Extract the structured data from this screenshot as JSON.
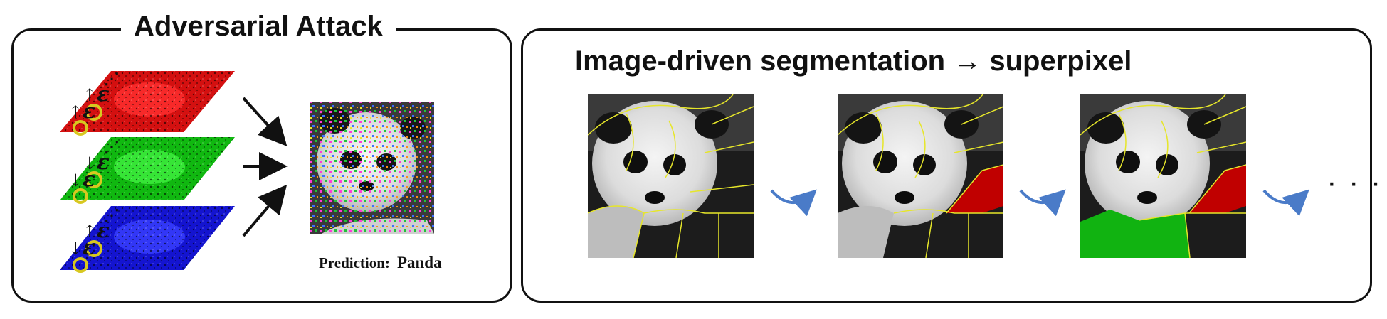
{
  "left_panel": {
    "title": "Adversarial Attack",
    "prediction_label": "Prediction:",
    "prediction_value": "Panda",
    "channels": [
      {
        "name": "red",
        "color": "#e01010",
        "eps_a": "↑",
        "eps_b": "↑"
      },
      {
        "name": "green",
        "color": "#10c810",
        "eps_a": "↓",
        "eps_b": "↓"
      },
      {
        "name": "blue",
        "color": "#1018e0",
        "eps_a": "↓",
        "eps_b": "↑"
      }
    ],
    "epsilon_symbol": "ε"
  },
  "right_panel": {
    "title_prefix": "Image-driven segmentation → ",
    "title_bold": "superpixel",
    "ellipsis": "· · ·"
  },
  "colors": {
    "outline": "#111111",
    "superpixel_boundary": "#e6e62a",
    "highlight_red": "#c00000",
    "highlight_green": "#11b311",
    "curved_arrow": "#4a7bc8",
    "marker_ring": "#d8c820"
  }
}
